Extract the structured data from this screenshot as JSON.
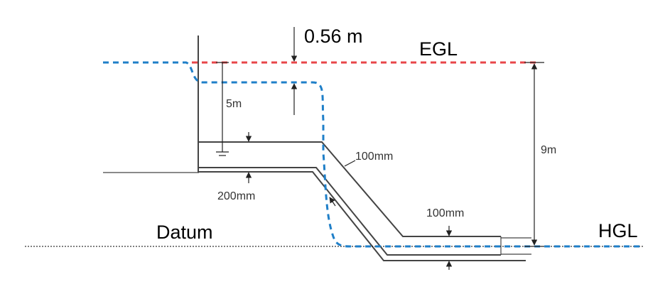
{
  "labels": {
    "head_loss": "0.56 m",
    "egl": "EGL",
    "hgl": "HGL",
    "datum": "Datum",
    "depth": "5m",
    "total_height": "9m",
    "pipe_upper": "100mm",
    "pipe_lower": "100mm",
    "pipe_bottom": "200mm"
  },
  "colors": {
    "egl": "#e8464a",
    "hgl": "#1f7fc8",
    "pipe": "#444444"
  }
}
